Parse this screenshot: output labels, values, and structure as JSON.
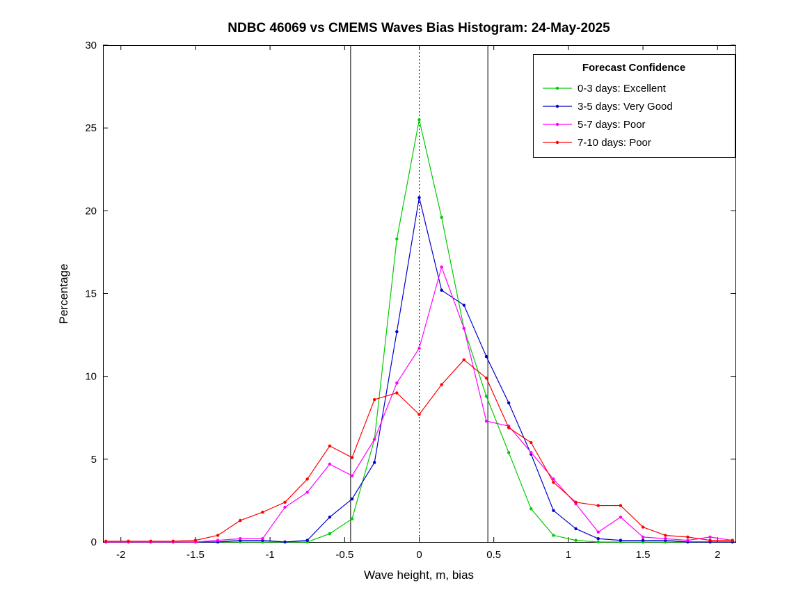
{
  "chart_data": {
    "type": "line",
    "title": "NDBC 46069 vs CMEMS Waves Bias Histogram: 24-May-2025",
    "xlabel": "Wave height, m, bias",
    "ylabel": "Percentage",
    "xlim": [
      -2.12,
      2.12
    ],
    "ylim": [
      0,
      30
    ],
    "xticks": [
      -2,
      -1.5,
      -1,
      -0.5,
      0,
      0.5,
      1,
      1.5,
      2
    ],
    "yticks": [
      0,
      5,
      10,
      15,
      20,
      25,
      30
    ],
    "grid": false,
    "legend_title": "Forecast Confidence",
    "legend_position": "top-right",
    "vlines": [
      {
        "x": -0.46,
        "style": "solid",
        "color": "#000000"
      },
      {
        "x": 0,
        "style": "dotted",
        "color": "#000000"
      },
      {
        "x": 0.46,
        "style": "solid",
        "color": "#000000"
      }
    ],
    "x": [
      -2.1,
      -1.95,
      -1.8,
      -1.65,
      -1.5,
      -1.35,
      -1.2,
      -1.05,
      -0.9,
      -0.75,
      -0.6,
      -0.45,
      -0.3,
      -0.15,
      0,
      0.15,
      0.3,
      0.45,
      0.6,
      0.75,
      0.9,
      1.05,
      1.2,
      1.35,
      1.5,
      1.65,
      1.8,
      1.95,
      2.1
    ],
    "series": [
      {
        "name": "0-3 days: Excellent",
        "color": "#00cc00",
        "values": [
          0,
          0,
          0,
          0,
          0,
          0,
          0,
          0,
          0,
          0,
          0.5,
          1.4,
          6.2,
          18.3,
          25.5,
          19.6,
          12.9,
          8.8,
          5.4,
          2.0,
          0.4,
          0.1,
          0,
          0,
          0,
          0,
          0,
          0,
          0
        ]
      },
      {
        "name": "3-5 days: Very Good",
        "color": "#0000cc",
        "values": [
          0,
          0,
          0,
          0,
          0,
          0,
          0.1,
          0.1,
          0,
          0.1,
          1.5,
          2.6,
          4.8,
          12.7,
          20.8,
          15.2,
          14.3,
          11.2,
          8.4,
          5.3,
          1.9,
          0.8,
          0.2,
          0.1,
          0.1,
          0.1,
          0,
          0,
          0
        ]
      },
      {
        "name": "5-7 days: Poor",
        "color": "#ff00ff",
        "values": [
          0,
          0,
          0,
          0,
          0,
          0.1,
          0.2,
          0.2,
          2.1,
          3.0,
          4.7,
          4.0,
          6.2,
          9.6,
          11.7,
          16.6,
          12.9,
          7.3,
          7.0,
          5.4,
          3.8,
          2.3,
          0.6,
          1.5,
          0.3,
          0.2,
          0.1,
          0.3,
          0.1
        ]
      },
      {
        "name": "7-10 days: Poor",
        "color": "#ff0000",
        "values": [
          0.05,
          0.05,
          0.05,
          0.05,
          0.1,
          0.4,
          1.3,
          1.8,
          2.4,
          3.8,
          5.8,
          5.1,
          8.6,
          9.0,
          7.7,
          9.5,
          11.0,
          9.9,
          6.9,
          6.0,
          3.6,
          2.4,
          2.2,
          2.2,
          0.9,
          0.4,
          0.3,
          0.1,
          0.1
        ]
      }
    ]
  }
}
